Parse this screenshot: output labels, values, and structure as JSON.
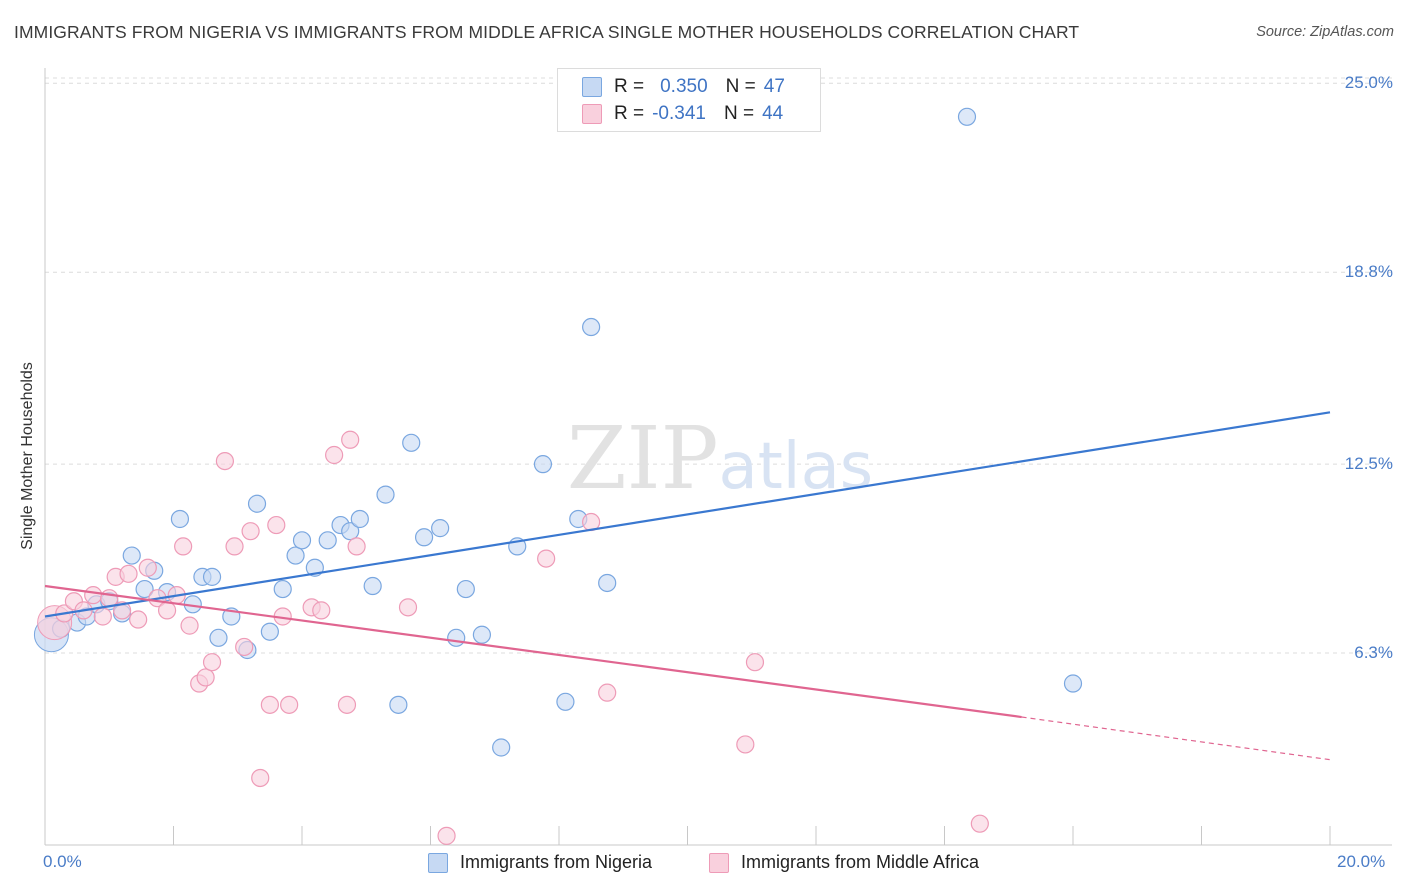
{
  "chart_data": {
    "type": "scatter",
    "title": "IMMIGRANTS FROM NIGERIA VS IMMIGRANTS FROM MIDDLE AFRICA SINGLE MOTHER HOUSEHOLDS CORRELATION CHART",
    "source": "Source: ZipAtlas.com",
    "xlabel": "",
    "ylabel": "Single Mother Households",
    "xlim": [
      0,
      20
    ],
    "ylim": [
      0,
      25.6
    ],
    "x_tick_labels": [
      "0.0%",
      "20.0%"
    ],
    "y_ticks": [
      {
        "value": 6.3,
        "label": "6.3%"
      },
      {
        "value": 12.5,
        "label": "12.5%"
      },
      {
        "value": 18.8,
        "label": "18.8%"
      },
      {
        "value": 25.0,
        "label": "25.0%"
      }
    ],
    "watermark": "ZIPatlas",
    "legend": {
      "r_label": "R =",
      "n_label": "N =",
      "entries": [
        {
          "name": "Immigrants from Nigeria",
          "r": "0.350",
          "n": "47"
        },
        {
          "name": "Immigrants from Middle Africa",
          "r": "-0.341",
          "n": "44"
        }
      ]
    },
    "series": [
      {
        "name": "Immigrants from Nigeria",
        "color": "#7aa7e0",
        "fill": "#c6d9f3",
        "trend_color": "#3a78d0",
        "trend": {
          "x": [
            0.0,
            20.0
          ],
          "y": [
            7.5,
            14.2
          ]
        },
        "big_points": [
          {
            "x": 0.1,
            "y": 6.9
          }
        ],
        "points": [
          {
            "x": 0.25,
            "y": 7.1
          },
          {
            "x": 0.5,
            "y": 7.3
          },
          {
            "x": 0.65,
            "y": 7.5
          },
          {
            "x": 0.8,
            "y": 7.9
          },
          {
            "x": 1.0,
            "y": 8.0
          },
          {
            "x": 1.2,
            "y": 7.6
          },
          {
            "x": 1.35,
            "y": 9.5
          },
          {
            "x": 1.55,
            "y": 8.4
          },
          {
            "x": 1.7,
            "y": 9.0
          },
          {
            "x": 1.9,
            "y": 8.3
          },
          {
            "x": 2.1,
            "y": 10.7
          },
          {
            "x": 2.3,
            "y": 7.9
          },
          {
            "x": 2.45,
            "y": 8.8
          },
          {
            "x": 2.6,
            "y": 8.8
          },
          {
            "x": 2.7,
            "y": 6.8
          },
          {
            "x": 2.9,
            "y": 7.5
          },
          {
            "x": 3.15,
            "y": 6.4
          },
          {
            "x": 3.3,
            "y": 11.2
          },
          {
            "x": 3.5,
            "y": 7.0
          },
          {
            "x": 3.7,
            "y": 8.4
          },
          {
            "x": 3.9,
            "y": 9.5
          },
          {
            "x": 4.0,
            "y": 10.0
          },
          {
            "x": 4.2,
            "y": 9.1
          },
          {
            "x": 4.4,
            "y": 10.0
          },
          {
            "x": 4.6,
            "y": 10.5
          },
          {
            "x": 4.75,
            "y": 10.3
          },
          {
            "x": 4.9,
            "y": 10.7
          },
          {
            "x": 5.1,
            "y": 8.5
          },
          {
            "x": 5.3,
            "y": 11.5
          },
          {
            "x": 5.5,
            "y": 4.6
          },
          {
            "x": 5.7,
            "y": 13.2
          },
          {
            "x": 5.9,
            "y": 10.1
          },
          {
            "x": 6.15,
            "y": 10.4
          },
          {
            "x": 6.4,
            "y": 6.8
          },
          {
            "x": 6.55,
            "y": 8.4
          },
          {
            "x": 6.8,
            "y": 6.9
          },
          {
            "x": 7.1,
            "y": 3.2
          },
          {
            "x": 7.35,
            "y": 9.8
          },
          {
            "x": 7.75,
            "y": 12.5
          },
          {
            "x": 8.1,
            "y": 4.7
          },
          {
            "x": 8.3,
            "y": 10.7
          },
          {
            "x": 8.5,
            "y": 17.0
          },
          {
            "x": 8.75,
            "y": 8.6
          },
          {
            "x": 14.35,
            "y": 23.9
          },
          {
            "x": 16.0,
            "y": 5.3
          }
        ]
      },
      {
        "name": "Immigrants from Middle Africa",
        "color": "#ee9bb7",
        "fill": "#f9d0dd",
        "trend_color": "#e06590",
        "trend": {
          "x": [
            0.0,
            15.2
          ],
          "y": [
            8.5,
            4.2
          ]
        },
        "trend_dash": {
          "x": [
            15.2,
            20.0
          ],
          "y": [
            4.2,
            2.8
          ]
        },
        "big_points": [
          {
            "x": 0.15,
            "y": 7.3
          }
        ],
        "points": [
          {
            "x": 0.3,
            "y": 7.6
          },
          {
            "x": 0.45,
            "y": 8.0
          },
          {
            "x": 0.6,
            "y": 7.7
          },
          {
            "x": 0.75,
            "y": 8.2
          },
          {
            "x": 0.9,
            "y": 7.5
          },
          {
            "x": 1.0,
            "y": 8.1
          },
          {
            "x": 1.1,
            "y": 8.8
          },
          {
            "x": 1.2,
            "y": 7.7
          },
          {
            "x": 1.3,
            "y": 8.9
          },
          {
            "x": 1.45,
            "y": 7.4
          },
          {
            "x": 1.6,
            "y": 9.1
          },
          {
            "x": 1.75,
            "y": 8.1
          },
          {
            "x": 1.9,
            "y": 7.7
          },
          {
            "x": 2.05,
            "y": 8.2
          },
          {
            "x": 2.15,
            "y": 9.8
          },
          {
            "x": 2.25,
            "y": 7.2
          },
          {
            "x": 2.4,
            "y": 5.3
          },
          {
            "x": 2.5,
            "y": 5.5
          },
          {
            "x": 2.6,
            "y": 6.0
          },
          {
            "x": 2.8,
            "y": 12.6
          },
          {
            "x": 2.95,
            "y": 9.8
          },
          {
            "x": 3.1,
            "y": 6.5
          },
          {
            "x": 3.2,
            "y": 10.3
          },
          {
            "x": 3.35,
            "y": 2.2
          },
          {
            "x": 3.5,
            "y": 4.6
          },
          {
            "x": 3.6,
            "y": 10.5
          },
          {
            "x": 3.7,
            "y": 7.5
          },
          {
            "x": 3.8,
            "y": 4.6
          },
          {
            "x": 4.15,
            "y": 7.8
          },
          {
            "x": 4.3,
            "y": 7.7
          },
          {
            "x": 4.5,
            "y": 12.8
          },
          {
            "x": 4.7,
            "y": 4.6
          },
          {
            "x": 4.75,
            "y": 13.3
          },
          {
            "x": 4.85,
            "y": 9.8
          },
          {
            "x": 5.65,
            "y": 7.8
          },
          {
            "x": 6.25,
            "y": 0.3
          },
          {
            "x": 7.8,
            "y": 9.4
          },
          {
            "x": 8.5,
            "y": 10.6
          },
          {
            "x": 8.75,
            "y": 5.0
          },
          {
            "x": 10.9,
            "y": 3.3
          },
          {
            "x": 11.05,
            "y": 6.0
          },
          {
            "x": 14.55,
            "y": 0.7
          }
        ]
      }
    ]
  }
}
